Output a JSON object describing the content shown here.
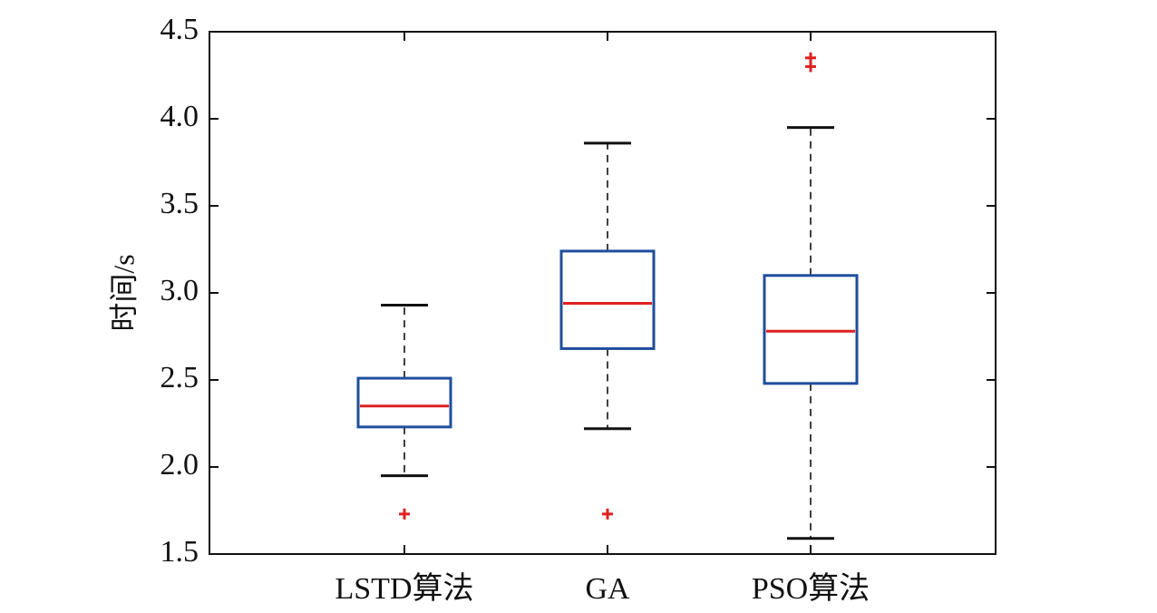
{
  "chart_data": {
    "type": "box",
    "title": "",
    "xlabel": "",
    "ylabel": "时间/s",
    "ylim": [
      1.5,
      4.5
    ],
    "yticks": [
      "1.5",
      "2.0",
      "2.5",
      "3.0",
      "3.5",
      "4.0",
      "4.5"
    ],
    "grid": false,
    "categories": [
      "LSTD算法",
      "GA",
      "PSO算法"
    ],
    "series": [
      {
        "whisker_low": 1.95,
        "q1": 2.23,
        "median": 2.35,
        "q3": 2.51,
        "whisker_high": 2.93,
        "outliers": [
          1.73
        ]
      },
      {
        "whisker_low": 2.22,
        "q1": 2.68,
        "median": 2.94,
        "q3": 3.24,
        "whisker_high": 3.86,
        "outliers": [
          1.73
        ]
      },
      {
        "whisker_low": 1.59,
        "q1": 2.48,
        "median": 2.78,
        "q3": 3.1,
        "whisker_high": 3.95,
        "outliers": [
          4.3,
          4.35
        ]
      }
    ],
    "colors": {
      "box": "#1f4e9c",
      "median": "#e02020",
      "outlier": "#e02020",
      "whisker": "#111111"
    }
  }
}
